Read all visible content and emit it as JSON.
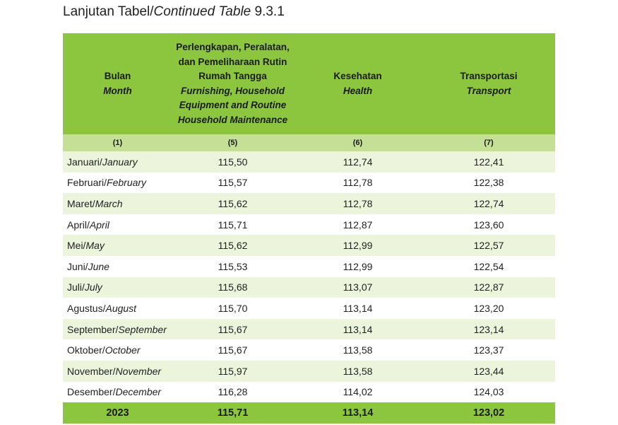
{
  "title": {
    "prefix": "Lanjutan Tabel/",
    "italic": "Continued Table",
    "number": " 9.3.1"
  },
  "headers": {
    "month": {
      "id": "Bulan",
      "en": "Month"
    },
    "furnishing": {
      "id1": "Perlengkapan, Peralatan,",
      "id2": "dan Pemeliharaan Rutin",
      "id3": "Rumah Tangga",
      "en1": "Furnishing, Household",
      "en2": "Equipment and Routine",
      "en3": "Household Maintenance"
    },
    "health": {
      "id": "Kesehatan",
      "en": "Health"
    },
    "transport": {
      "id": "Transportasi",
      "en": "Transport"
    }
  },
  "col_numbers": [
    "(1)",
    "(5)",
    "(6)",
    "(7)"
  ],
  "rows": [
    {
      "id": "Januari/",
      "en": "January",
      "v1": "115,50",
      "v2": "112,74",
      "v3": "122,41"
    },
    {
      "id": "Februari/",
      "en": "February",
      "v1": "115,57",
      "v2": "112,78",
      "v3": "122,38"
    },
    {
      "id": "Maret/",
      "en": "March",
      "v1": "115,62",
      "v2": "112,78",
      "v3": "122,74"
    },
    {
      "id": "April/",
      "en": "April",
      "v1": "115,71",
      "v2": "112,87",
      "v3": "123,60"
    },
    {
      "id": "Mei/",
      "en": "May",
      "v1": "115,62",
      "v2": "112,99",
      "v3": "122,57"
    },
    {
      "id": "Juni/",
      "en": "June",
      "v1": "115,53",
      "v2": "112,99",
      "v3": "122,54"
    },
    {
      "id": "Juli/",
      "en": "July",
      "v1": "115,68",
      "v2": "113,07",
      "v3": "122,87"
    },
    {
      "id": "Agustus/",
      "en": "August",
      "v1": "115,70",
      "v2": "113,14",
      "v3": "123,20"
    },
    {
      "id": "September/",
      "en": "September",
      "v1": "115,67",
      "v2": "113,14",
      "v3": "123,14"
    },
    {
      "id": "Oktober/",
      "en": "October",
      "v1": "115,67",
      "v2": "113,58",
      "v3": "123,37"
    },
    {
      "id": "November/",
      "en": "November",
      "v1": "115,97",
      "v2": "113,58",
      "v3": "123,44"
    },
    {
      "id": "Desember/",
      "en": "December",
      "v1": "116,28",
      "v2": "114,02",
      "v3": "124,03"
    }
  ],
  "total": {
    "label": "2023",
    "v1": "115,71",
    "v2": "113,14",
    "v3": "123,02"
  }
}
